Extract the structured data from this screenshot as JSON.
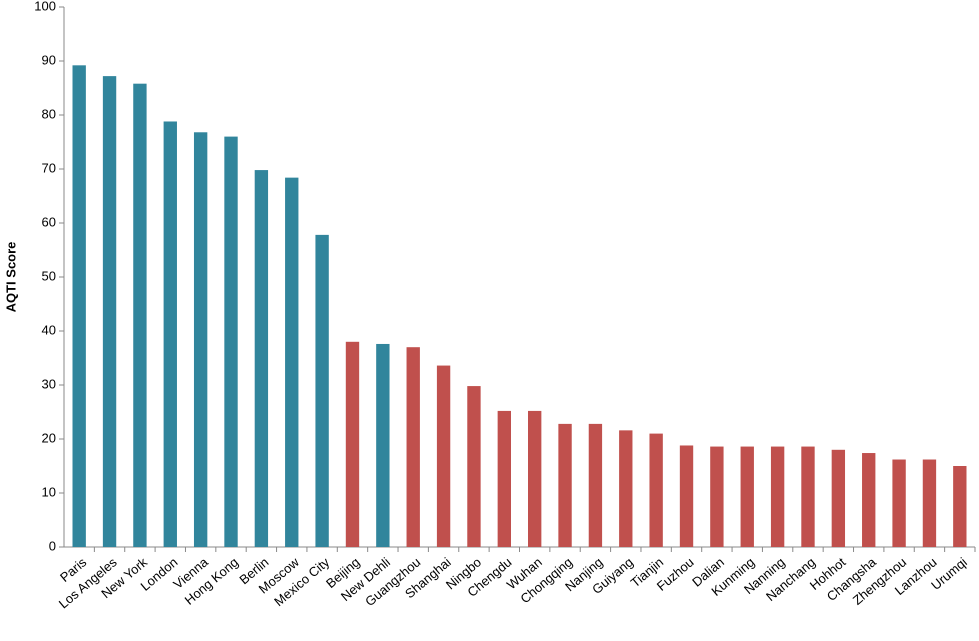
{
  "chart_data": {
    "type": "bar",
    "y_label": "AQTI Score",
    "categories": [
      "Paris",
      "Los Angeles",
      "New York",
      "London",
      "Vienna",
      "Hong Kong",
      "Berlin",
      "Moscow",
      "Mexico City",
      "Beijing",
      "New Dehli",
      "Guangzhou",
      "Shanghai",
      "Ningbo",
      "Chengdu",
      "Wuhan",
      "Chongqing",
      "Nanjing",
      "Guiyang",
      "Tianjin",
      "Fuzhou",
      "Dalian",
      "Kunming",
      "Nanning",
      "Nanchang",
      "Hohhot",
      "Changsha",
      "Zhengzhou",
      "Lanzhou",
      "Urumqi"
    ],
    "values": [
      89.2,
      87.2,
      85.8,
      78.8,
      76.8,
      76,
      69.8,
      68.4,
      57.8,
      38,
      37.6,
      37,
      33.6,
      29.8,
      25.2,
      25.2,
      22.8,
      22.8,
      21.6,
      21,
      18.8,
      18.6,
      18.6,
      18.6,
      18.6,
      18,
      17.4,
      16.2,
      16.2,
      15
    ],
    "colors": [
      "#31859c",
      "#31859c",
      "#31859c",
      "#31859c",
      "#31859c",
      "#31859c",
      "#31859c",
      "#31859c",
      "#31859c",
      "#c0504d",
      "#31859c",
      "#c0504d",
      "#c0504d",
      "#c0504d",
      "#c0504d",
      "#c0504d",
      "#c0504d",
      "#c0504d",
      "#c0504d",
      "#c0504d",
      "#c0504d",
      "#c0504d",
      "#c0504d",
      "#c0504d",
      "#c0504d",
      "#c0504d",
      "#c0504d",
      "#c0504d",
      "#c0504d",
      "#c0504d"
    ],
    "ylim": [
      0,
      100
    ],
    "yticks": [
      0,
      10,
      20,
      30,
      40,
      50,
      60,
      70,
      80,
      90,
      100
    ],
    "grid": false
  }
}
